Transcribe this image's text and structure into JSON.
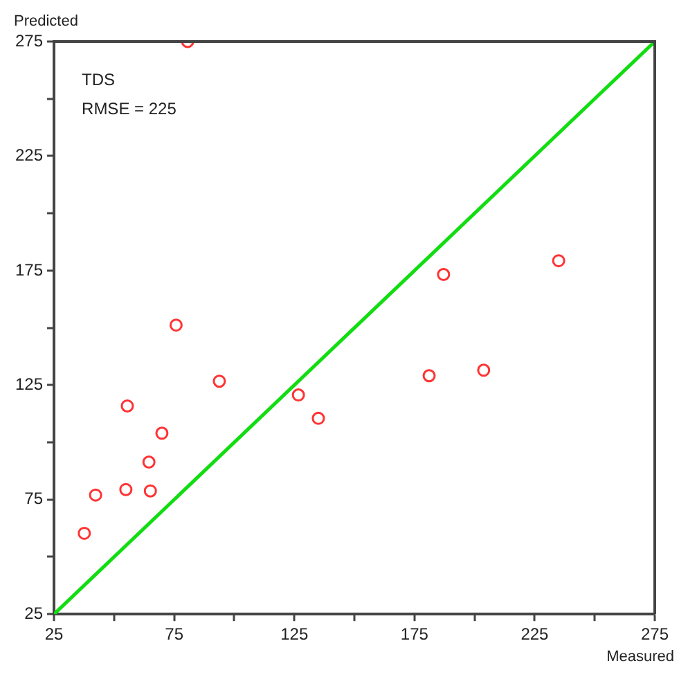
{
  "chart_data": {
    "type": "scatter",
    "xlabel": "Measured",
    "ylabel": "Predicted",
    "annotations": [
      "TDS",
      "RMSE = 225"
    ],
    "series": [
      {
        "color": "#ff3333",
        "x": [
          37.6,
          42.3,
          54.9,
          55.5,
          65.1,
          64.5,
          69.9,
          75.8,
          93.8,
          126.7,
          135,
          181.1,
          187.1,
          203.8,
          235,
          80.6
        ],
        "values": [
          60.3,
          77,
          79.4,
          115.9,
          78.8,
          91.4,
          104,
          151.2,
          126.7,
          120.7,
          110.5,
          129.1,
          173.3,
          131.5,
          179.3,
          275
        ]
      },
      {
        "type": "line",
        "marker": "none",
        "color": "#11dd11",
        "x": [
          25,
          275
        ],
        "values": [
          25,
          275
        ]
      }
    ],
    "marker": "circle",
    "grid": false,
    "legend": false,
    "xlim": [
      25,
      275
    ],
    "ylim": [
      25,
      275
    ],
    "xticks": [
      25,
      {
        "value": 50,
        "label": null
      },
      75,
      {
        "value": 100,
        "label": null
      },
      125,
      {
        "value": 150,
        "label": null
      },
      175,
      {
        "value": 200,
        "label": null
      },
      225,
      {
        "value": 250,
        "label": null
      },
      275
    ],
    "yticks": [
      25,
      {
        "value": 50,
        "label": null
      },
      75,
      {
        "value": 100,
        "label": null
      },
      125,
      {
        "value": 150,
        "label": null
      },
      175,
      {
        "value": 200,
        "label": null
      },
      225,
      {
        "value": 250,
        "label": null
      },
      275
    ]
  }
}
